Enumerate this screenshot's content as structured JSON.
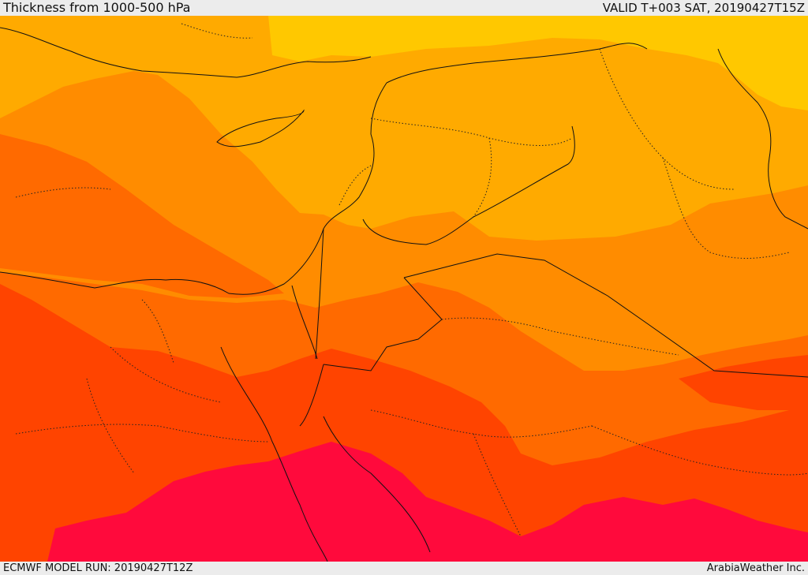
{
  "header": {
    "title": "Thickness from 1000-500 hPa",
    "valid": "VALID T+003 SAT, 20190427T15Z"
  },
  "footer": {
    "run": "ECMWF MODEL RUN: 20190427T12Z",
    "credit": "ArabiaWeather Inc."
  },
  "colors": {
    "band_1": "#ffc800",
    "band_2": "#ffaa00",
    "band_3": "#ff8c00",
    "band_4": "#ff6a00",
    "band_5": "#ff4400",
    "band_6": "#ff0a3c",
    "border": "#111111"
  }
}
